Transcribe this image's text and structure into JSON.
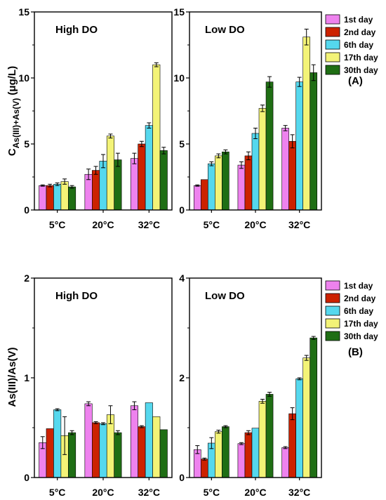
{
  "colors": [
    "#ee82ee",
    "#cc2200",
    "#55d8ee",
    "#f3f377",
    "#1f6e14"
  ],
  "series_names": [
    "1st day",
    "2nd day",
    "6th day",
    "17th day",
    "30th day"
  ],
  "categories": [
    "5°C",
    "20°C",
    "32°C"
  ],
  "panel_labels": [
    "(A)",
    "(B)"
  ],
  "ylabel_top_main": "C",
  "ylabel_top_sub": "As(III)+As(V)",
  "ylabel_top_unit": "(μg/L)",
  "ylabel_bottom": "As(III)/As(V)",
  "chart_data": [
    {
      "type": "bar",
      "title": "High DO",
      "ylim": [
        0,
        15
      ],
      "yticks": [
        0,
        5,
        10,
        15
      ],
      "categories": [
        "5°C",
        "20°C",
        "32°C"
      ],
      "series": [
        {
          "name": "1st day",
          "values": [
            1.85,
            2.7,
            3.9
          ],
          "errors": [
            0.05,
            0.4,
            0.4
          ]
        },
        {
          "name": "2nd day",
          "values": [
            1.85,
            3.0,
            5.0
          ],
          "errors": [
            0.1,
            0.3,
            0.2
          ]
        },
        {
          "name": "6th day",
          "values": [
            1.95,
            3.7,
            6.4
          ],
          "errors": [
            0.1,
            0.5,
            0.2
          ]
        },
        {
          "name": "17th day",
          "values": [
            2.15,
            5.6,
            11.0
          ],
          "errors": [
            0.2,
            0.15,
            0.15
          ]
        },
        {
          "name": "30th day",
          "values": [
            1.75,
            3.8,
            4.5
          ],
          "errors": [
            0.1,
            0.5,
            0.25
          ]
        }
      ]
    },
    {
      "type": "bar",
      "title": "Low DO",
      "ylim": [
        0,
        15
      ],
      "yticks": [
        0,
        5,
        10,
        15
      ],
      "categories": [
        "5°C",
        "20°C",
        "32°C"
      ],
      "series": [
        {
          "name": "1st day",
          "values": [
            1.85,
            3.4,
            6.2
          ],
          "errors": [
            0.05,
            0.25,
            0.2
          ]
        },
        {
          "name": "2nd day",
          "values": [
            2.3,
            4.1,
            5.2
          ],
          "errors": [
            0.0,
            0.3,
            0.5
          ]
        },
        {
          "name": "6th day",
          "values": [
            3.5,
            5.8,
            9.7
          ],
          "errors": [
            0.15,
            0.4,
            0.35
          ]
        },
        {
          "name": "17th day",
          "values": [
            4.1,
            7.7,
            13.1
          ],
          "errors": [
            0.15,
            0.25,
            0.6
          ]
        },
        {
          "name": "30th day",
          "values": [
            4.4,
            9.7,
            10.4
          ],
          "errors": [
            0.15,
            0.4,
            0.6
          ]
        }
      ]
    },
    {
      "type": "bar",
      "title": "High DO",
      "ylim": [
        0,
        2
      ],
      "yticks": [
        0,
        1,
        2
      ],
      "categories": [
        "5°C",
        "20°C",
        "32°C"
      ],
      "series": [
        {
          "name": "1st day",
          "values": [
            0.35,
            0.74,
            0.72
          ],
          "errors": [
            0.06,
            0.02,
            0.04
          ]
        },
        {
          "name": "2nd day",
          "values": [
            0.49,
            0.55,
            0.51
          ],
          "errors": [
            0.0,
            0.01,
            0.01
          ]
        },
        {
          "name": "6th day",
          "values": [
            0.68,
            0.54,
            0.75
          ],
          "errors": [
            0.01,
            0.01,
            0.0
          ]
        },
        {
          "name": "17th day",
          "values": [
            0.42,
            0.63,
            0.61
          ],
          "errors": [
            0.19,
            0.09,
            0.0
          ]
        },
        {
          "name": "30th day",
          "values": [
            0.45,
            0.45,
            0.48
          ],
          "errors": [
            0.02,
            0.02,
            0.0
          ]
        }
      ]
    },
    {
      "type": "bar",
      "title": "Low DO",
      "ylim": [
        0,
        4
      ],
      "yticks": [
        0,
        2,
        4
      ],
      "categories": [
        "5°C",
        "20°C",
        "32°C"
      ],
      "series": [
        {
          "name": "1st day",
          "values": [
            0.56,
            0.68,
            0.6
          ],
          "errors": [
            0.08,
            0.02,
            0.02
          ]
        },
        {
          "name": "2nd day",
          "values": [
            0.37,
            0.9,
            1.28
          ],
          "errors": [
            0.02,
            0.04,
            0.12
          ]
        },
        {
          "name": "6th day",
          "values": [
            0.69,
            0.99,
            1.98
          ],
          "errors": [
            0.11,
            0.0,
            0.02
          ]
        },
        {
          "name": "17th day",
          "values": [
            0.92,
            1.53,
            2.4
          ],
          "errors": [
            0.03,
            0.04,
            0.05
          ]
        },
        {
          "name": "30th day",
          "values": [
            1.02,
            1.67,
            2.8
          ],
          "errors": [
            0.02,
            0.04,
            0.03
          ]
        }
      ]
    }
  ]
}
